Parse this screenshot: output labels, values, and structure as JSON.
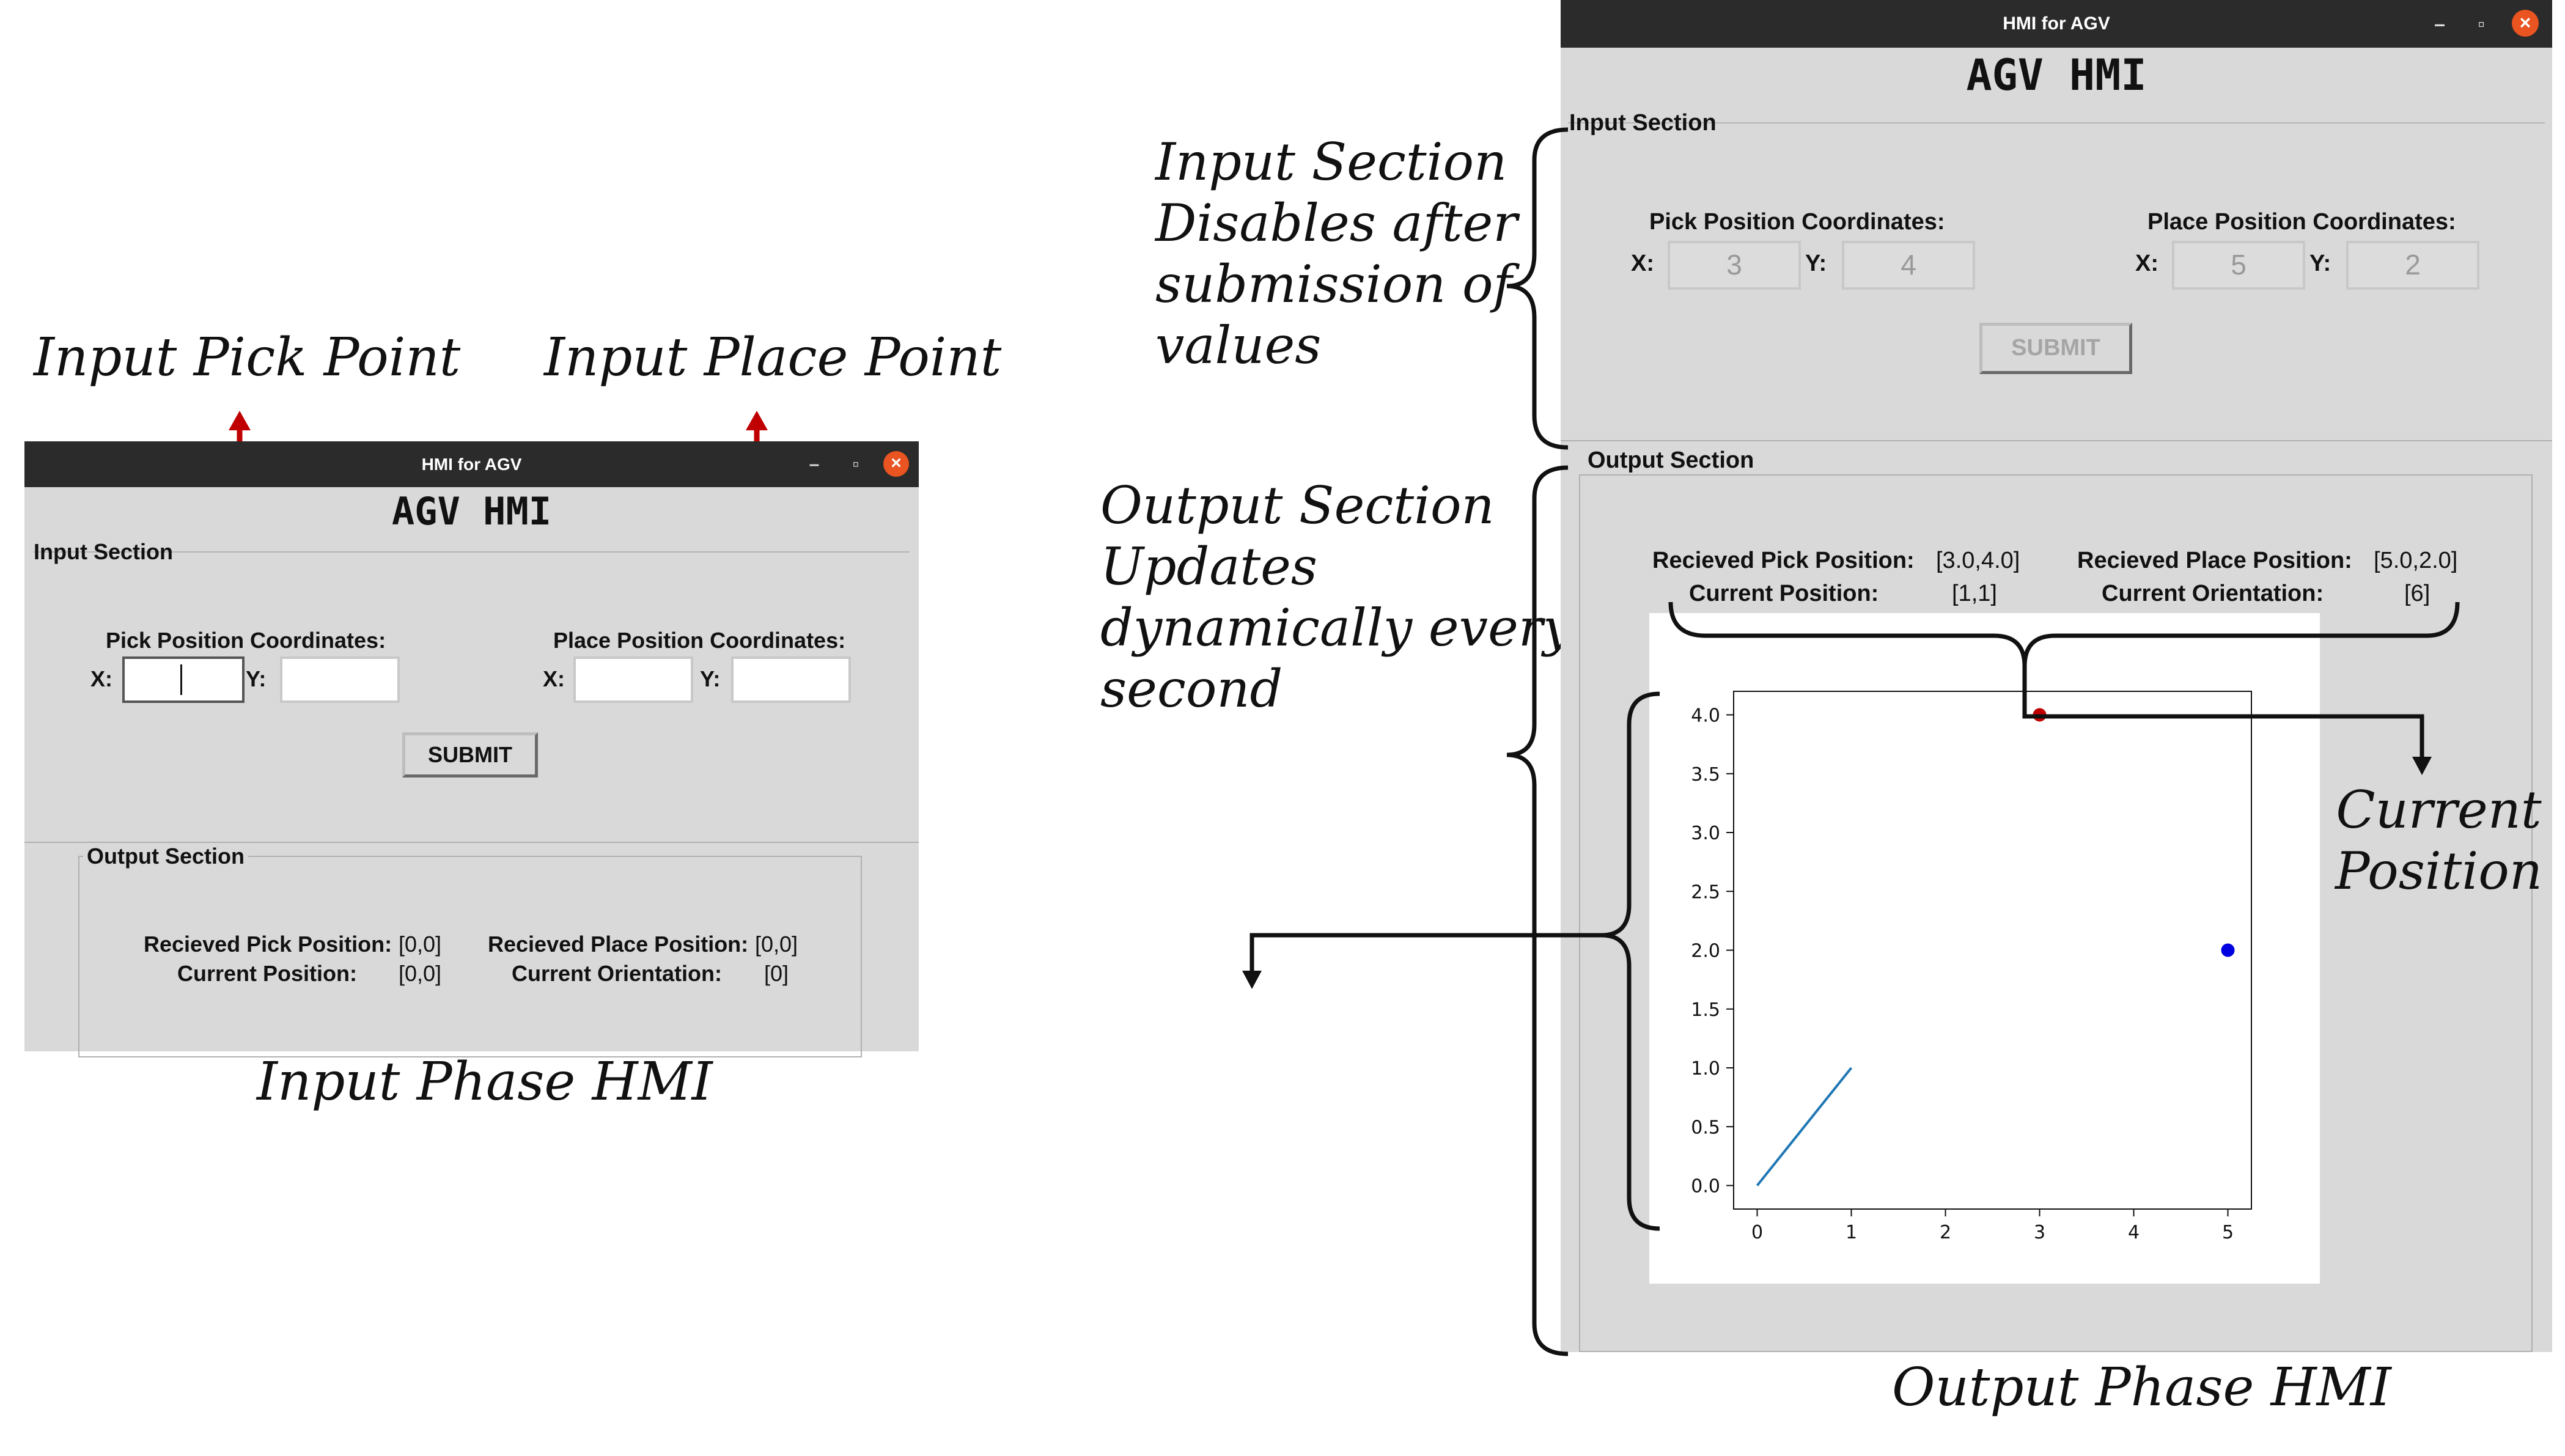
{
  "annotations": {
    "input_pick_point": "Input Pick Point",
    "input_place_point": "Input Place Point",
    "input_phase_caption": "Input Phase HMI",
    "input_section_note": [
      "Input Section",
      "Disables after",
      "submission of",
      "values"
    ],
    "output_section_note": [
      "Output Section",
      "Updates",
      "dynamically every",
      "second"
    ],
    "current_position_note": [
      "Current",
      "Position"
    ],
    "output_phase_caption": "Output Phase HMI"
  },
  "window_controls": {
    "minimize": "–",
    "maximize": "▫",
    "close": "×"
  },
  "input_window": {
    "window_title": "HMI for AGV",
    "app_title": "AGV HMI",
    "input_section_label": "Input Section",
    "pick_label": "Pick Position Coordinates:",
    "place_label": "Place Position Coordinates:",
    "x_label": "X:",
    "y_label": "Y:",
    "pick_x_value": "",
    "pick_y_value": "",
    "place_x_value": "",
    "place_y_value": "",
    "submit_label": "SUBMIT",
    "output_section_label": "Output Section",
    "received_pick_label": "Recieved Pick Position:",
    "received_pick_value": "[0,0]",
    "current_position_label": "Current Position:",
    "current_position_value": "[0,0]",
    "received_place_label": "Recieved Place Position:",
    "received_place_value": "[0,0]",
    "current_orientation_label": "Current Orientation:",
    "current_orientation_value": "[0]"
  },
  "output_window": {
    "window_title": "HMI for AGV",
    "app_title": "AGV HMI",
    "input_section_label": "Input Section",
    "pick_label": "Pick Position Coordinates:",
    "place_label": "Place Position Coordinates:",
    "x_label": "X:",
    "y_label": "Y:",
    "pick_x_value": "3",
    "pick_y_value": "4",
    "place_x_value": "5",
    "place_y_value": "2",
    "submit_label": "SUBMIT",
    "output_section_label": "Output Section",
    "received_pick_label": "Recieved Pick Position:",
    "received_pick_value": "[3.0,4.0]",
    "current_position_label": "Current Position:",
    "current_position_value": "[1,1]",
    "received_place_label": "Recieved Place Position:",
    "received_place_value": "[5.0,2.0]",
    "current_orientation_label": "Current Orientation:",
    "current_orientation_value": "[6]"
  },
  "chart_data": {
    "type": "line",
    "xlim": [
      -0.25,
      5.25
    ],
    "ylim": [
      -0.2,
      4.2
    ],
    "x_ticks": [
      0,
      1,
      2,
      3,
      4,
      5
    ],
    "y_ticks": [
      0.0,
      0.5,
      1.0,
      1.5,
      2.0,
      2.5,
      3.0,
      3.5,
      4.0
    ],
    "x_tick_labels": [
      "0",
      "1",
      "2",
      "3",
      "4",
      "5"
    ],
    "y_tick_labels": [
      "0.0",
      "0.5",
      "1.0",
      "1.5",
      "2.0",
      "2.5",
      "3.0",
      "3.5",
      "4.0"
    ],
    "path": {
      "x": [
        0,
        1
      ],
      "y": [
        0,
        1
      ],
      "color": "#1f77b4"
    },
    "pick_point": {
      "x": 3,
      "y": 4,
      "color": "#c00000"
    },
    "place_point": {
      "x": 5,
      "y": 2,
      "color": "#0000e0"
    },
    "grid": false,
    "title": "",
    "xlabel": "",
    "ylabel": ""
  }
}
